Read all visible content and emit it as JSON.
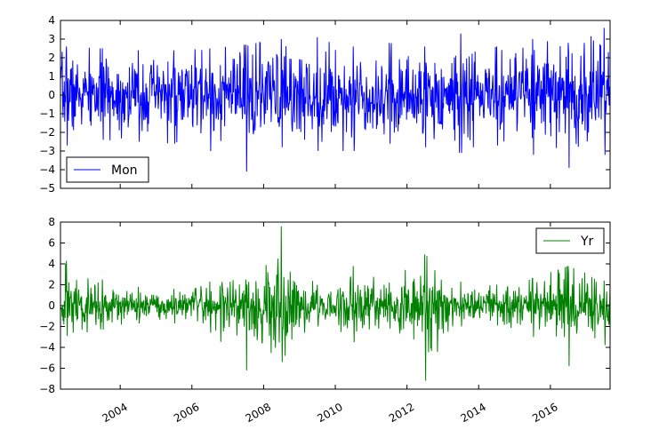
{
  "chart_data": [
    {
      "type": "line",
      "series": [
        {
          "name": "Mon",
          "color": "#0000ff"
        }
      ],
      "x_range": [
        "2002-05-01",
        "2017-08-31"
      ],
      "ylim": [
        -5,
        4
      ],
      "yticks": [
        "4",
        "3",
        "2",
        "1",
        "0",
        "−1",
        "−2",
        "−3",
        "−4",
        "−5"
      ],
      "legend": "lower-left",
      "grid": false,
      "notable_values": {
        "max": 3.6,
        "min": -4.1
      },
      "x": [
        "2002",
        "2003",
        "2004",
        "2005",
        "2006",
        "2007",
        "2008",
        "2009",
        "2010",
        "2011",
        "2012",
        "2013",
        "2014",
        "2015",
        "2016",
        "2017"
      ],
      "envelope_max": [
        2.6,
        2.5,
        2.4,
        2.4,
        2.5,
        2.7,
        3.0,
        3.1,
        2.6,
        2.8,
        2.6,
        3.3,
        2.6,
        3.0,
        2.8,
        3.6
      ],
      "envelope_min": [
        -2.7,
        -2.4,
        -2.5,
        -2.6,
        -3.0,
        -4.1,
        -2.8,
        -3.0,
        -3.0,
        -2.6,
        -2.8,
        -3.1,
        -2.7,
        -3.2,
        -3.9,
        -3.2
      ]
    },
    {
      "type": "line",
      "series": [
        {
          "name": "Yr",
          "color": "#008000"
        }
      ],
      "x_range": [
        "2002-05-01",
        "2017-08-31"
      ],
      "ylim": [
        -8,
        8
      ],
      "yticks": [
        "8",
        "6",
        "4",
        "2",
        "0",
        "−2",
        "−4",
        "−6",
        "−8"
      ],
      "xticks": [
        "2004",
        "2006",
        "2008",
        "2010",
        "2012",
        "2014",
        "2016"
      ],
      "legend": "upper-right",
      "grid": false,
      "notable_values": {
        "max": 7.6,
        "min": -7.2
      },
      "x": [
        "2002",
        "2003",
        "2004",
        "2005",
        "2006",
        "2007",
        "2008",
        "2009",
        "2010",
        "2011",
        "2012",
        "2013",
        "2014",
        "2015",
        "2016",
        "2017"
      ],
      "envelope_max": [
        4.3,
        2.5,
        1.8,
        1.6,
        2.3,
        2.5,
        7.6,
        2.0,
        3.8,
        2.2,
        4.9,
        2.3,
        2.0,
        2.6,
        3.8,
        2.4
      ],
      "envelope_min": [
        -2.9,
        -2.3,
        -1.7,
        -1.7,
        -2.6,
        -6.2,
        -5.4,
        -2.0,
        -3.5,
        -2.2,
        -7.2,
        -2.0,
        -1.9,
        -3.0,
        -5.8,
        -3.8
      ]
    }
  ]
}
